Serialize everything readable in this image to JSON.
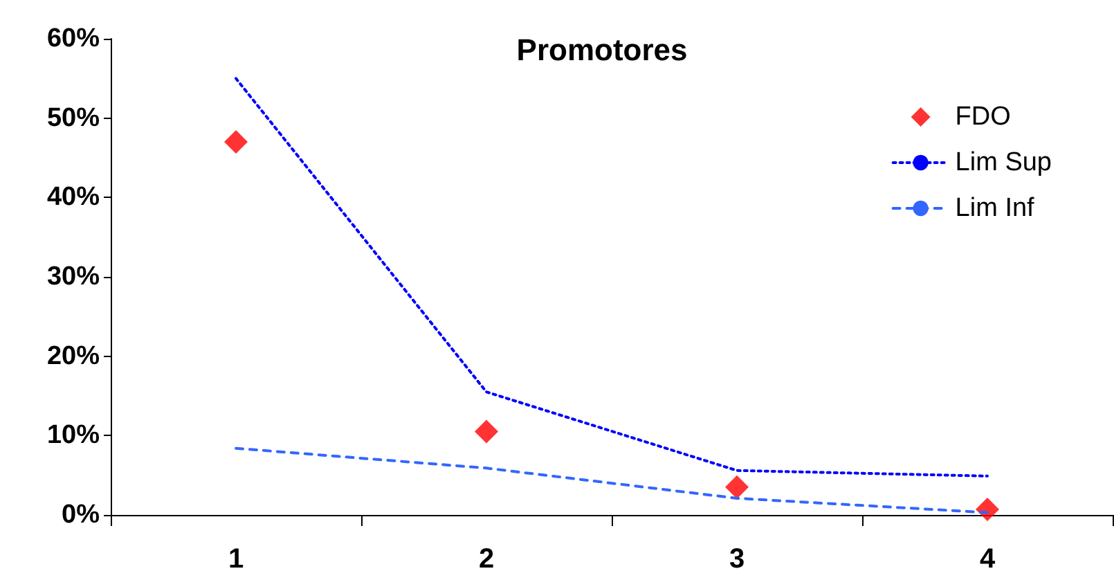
{
  "chart_data": {
    "type": "line",
    "title": "Promotores",
    "categories": [
      "1",
      "2",
      "3",
      "4"
    ],
    "series": [
      {
        "name": "FDO",
        "type": "scatter",
        "marker": "diamond",
        "color": "#ff0000",
        "values": [
          47,
          10.5,
          3.5,
          0.7
        ]
      },
      {
        "name": "Lim Sup",
        "marker": "none",
        "line_style": "dotted",
        "color": "#0000ff",
        "values": [
          55,
          15.5,
          5.6,
          4.9
        ]
      },
      {
        "name": "Lim Inf",
        "marker": "none",
        "line_style": "dashed",
        "color": "#3366ff",
        "values": [
          8.4,
          5.9,
          2.1,
          0.3
        ]
      }
    ],
    "ylim": [
      0,
      60
    ],
    "yticks": [
      {
        "value": 0,
        "label": "0%"
      },
      {
        "value": 10,
        "label": "10%"
      },
      {
        "value": 20,
        "label": "20%"
      },
      {
        "value": 30,
        "label": "30%"
      },
      {
        "value": 40,
        "label": "40%"
      },
      {
        "value": 50,
        "label": "50%"
      },
      {
        "value": 60,
        "label": "60%"
      }
    ],
    "grid": false,
    "legend": "top right"
  }
}
